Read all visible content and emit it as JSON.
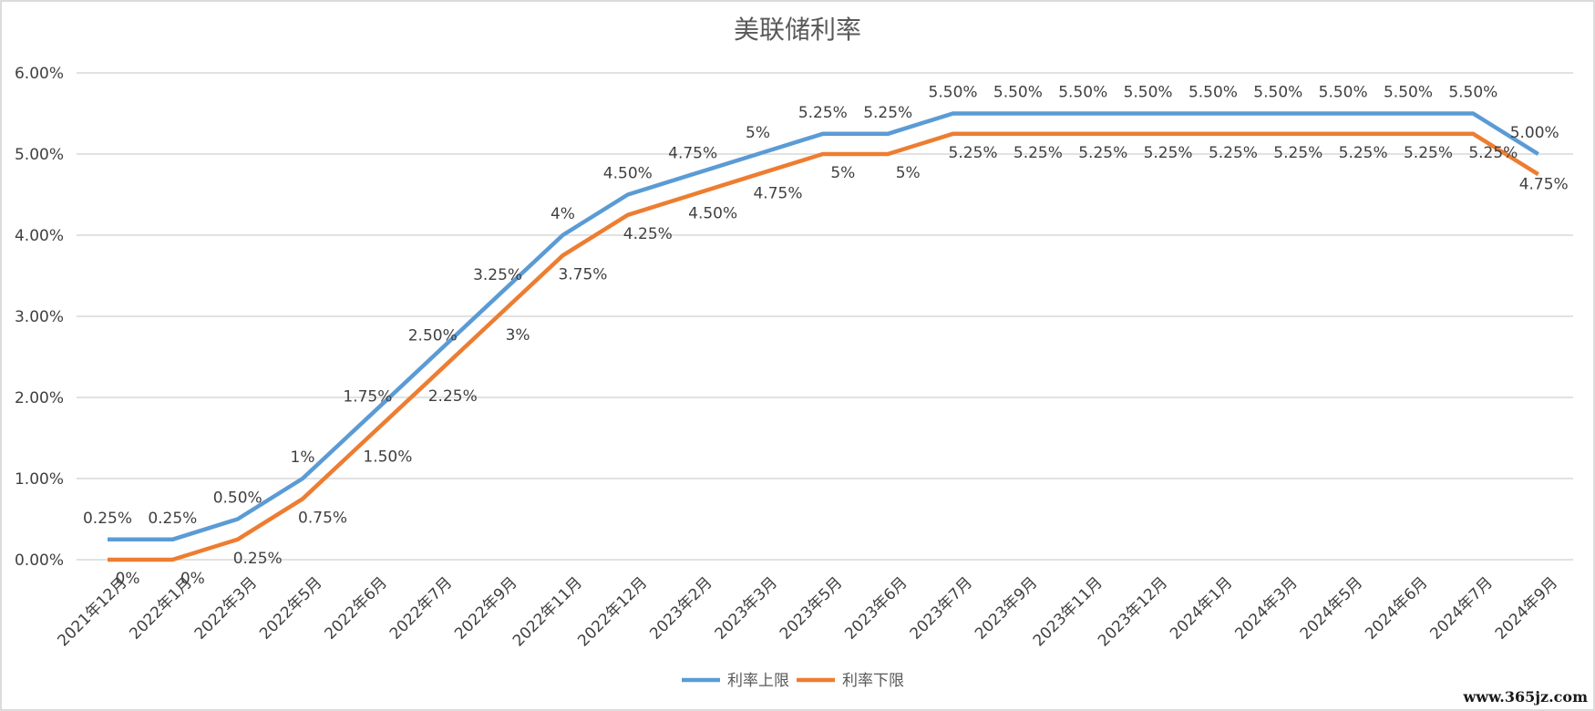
{
  "chart_data": {
    "type": "line",
    "title": "美联储利率",
    "xlabel": "",
    "ylabel": "",
    "ylim": [
      0,
      0.06
    ],
    "y_ticks": [
      "0.00%",
      "1.00%",
      "2.00%",
      "3.00%",
      "4.00%",
      "5.00%",
      "6.00%"
    ],
    "grid": true,
    "legend_position": "bottom",
    "categories": [
      "2021年12月",
      "2022年1月",
      "2022年3月",
      "2022年5月",
      "2022年6月",
      "2022年7月",
      "2022年9月",
      "2022年11月",
      "2022年12月",
      "2023年2月",
      "2023年3月",
      "2023年5月",
      "2023年6月",
      "2023年7月",
      "2023年9月",
      "2023年11月",
      "2023年12月",
      "2024年1月",
      "2024年3月",
      "2024年5月",
      "2024年6月",
      "2024年7月",
      "2024年9月"
    ],
    "series": [
      {
        "name": "利率上限",
        "color": "#5b9bd5",
        "values": [
          0.0025,
          0.0025,
          0.005,
          0.01,
          0.0175,
          0.025,
          0.0325,
          0.04,
          0.045,
          0.0475,
          0.05,
          0.0525,
          0.0525,
          0.055,
          0.055,
          0.055,
          0.055,
          0.055,
          0.055,
          0.055,
          0.055,
          0.055,
          0.05
        ],
        "labels": [
          "0.25%",
          "0.25%",
          "0.50%",
          "1%",
          "1.75%",
          "2.50%",
          "3.25%",
          "4%",
          "4.50%",
          "4.75%",
          "5%",
          "5.25%",
          "5.25%",
          "5.50%",
          "5.50%",
          "5.50%",
          "5.50%",
          "5.50%",
          "5.50%",
          "5.50%",
          "5.50%",
          "5.50%",
          "5.00%"
        ]
      },
      {
        "name": "利率下限",
        "color": "#ed7d31",
        "values": [
          0,
          0,
          0.0025,
          0.0075,
          0.015,
          0.0225,
          0.03,
          0.0375,
          0.0425,
          0.045,
          0.0475,
          0.05,
          0.05,
          0.0525,
          0.0525,
          0.0525,
          0.0525,
          0.0525,
          0.0525,
          0.0525,
          0.0525,
          0.0525,
          0.0475
        ],
        "labels": [
          "0%",
          "0%",
          "0.25%",
          "0.75%",
          "1.50%",
          "2.25%",
          "3%",
          "3.75%",
          "4.25%",
          "4.50%",
          "4.75%",
          "5%",
          "5%",
          "5.25%",
          "5.25%",
          "5.25%",
          "5.25%",
          "5.25%",
          "5.25%",
          "5.25%",
          "5.25%",
          "5.25%",
          "4.75%"
        ]
      }
    ]
  },
  "watermark": "www.365jz.com"
}
